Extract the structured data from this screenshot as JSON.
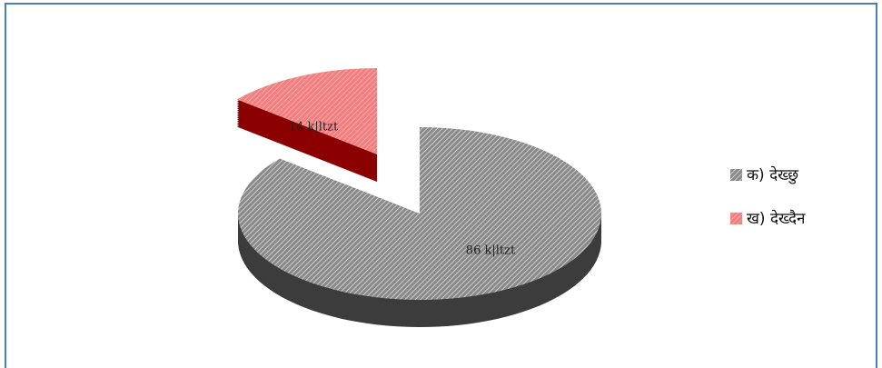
{
  "chart_data": {
    "type": "pie",
    "categories": [
      "क) देख्छु",
      "ख) देख्दैन"
    ],
    "values": [
      86,
      14
    ],
    "value_labels": [
      "86 k|ltzt",
      "14 k|ltzt"
    ],
    "colors": [
      "#8a8a8a",
      "#f08080"
    ],
    "legend": "right"
  }
}
